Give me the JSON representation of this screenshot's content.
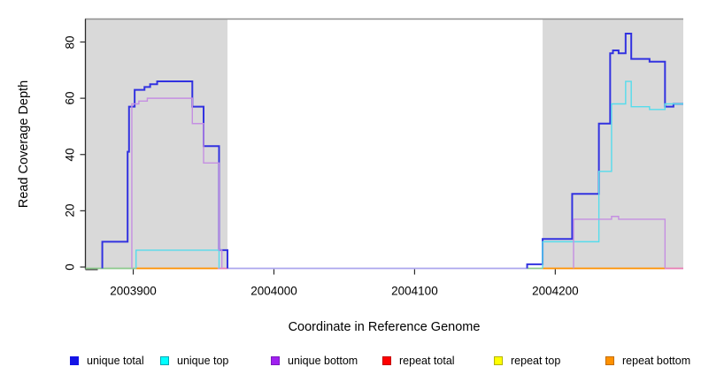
{
  "chart": {
    "y_title": "Read Coverage Depth",
    "x_title": "Coordinate in Reference Genome"
  },
  "chart_data": {
    "type": "line",
    "subtype": "step-function read coverage plot",
    "title": "",
    "xlabel": "Coordinate in Reference Genome",
    "ylabel": "Read Coverage Depth",
    "xlim": [
      2003866,
      2004291
    ],
    "ylim": [
      0,
      80
    ],
    "x_ticks": [
      2003900,
      2004000,
      2004100,
      2004200
    ],
    "y_ticks": [
      0,
      20,
      40,
      60,
      80
    ],
    "grid": false,
    "legend_position": "bottom",
    "shaded_regions": [
      {
        "from": 2003866,
        "to": 2003967,
        "color": "#d9d9d9"
      },
      {
        "from": 2004191,
        "to": 2004291,
        "color": "#d9d9d9"
      }
    ],
    "series": [
      {
        "name": "unique total",
        "color": "#3232e0",
        "width": 2,
        "steps": [
          [
            2003866,
            0
          ],
          [
            2003878,
            9
          ],
          [
            2003896,
            41
          ],
          [
            2003897,
            57
          ],
          [
            2003901,
            63
          ],
          [
            2003908,
            64
          ],
          [
            2003912,
            65
          ],
          [
            2003917,
            66
          ],
          [
            2003942,
            57
          ],
          [
            2003950,
            43
          ],
          [
            2003961,
            6
          ],
          [
            2003967,
            0
          ],
          [
            2004180,
            1
          ],
          [
            2004191,
            10
          ],
          [
            2004212,
            26
          ],
          [
            2004231,
            51
          ],
          [
            2004239,
            76
          ],
          [
            2004241,
            77
          ],
          [
            2004245,
            76
          ],
          [
            2004250,
            83
          ],
          [
            2004254,
            74
          ],
          [
            2004267,
            73
          ],
          [
            2004278,
            57
          ],
          [
            2004284,
            58
          ],
          [
            2004291,
            58
          ]
        ]
      },
      {
        "name": "unique top",
        "color": "#55dcec",
        "width": 1.4,
        "steps": [
          [
            2003866,
            0
          ],
          [
            2003902,
            6
          ],
          [
            2003961,
            0
          ],
          [
            2004191,
            9
          ],
          [
            2004231,
            34
          ],
          [
            2004240,
            58
          ],
          [
            2004250,
            66
          ],
          [
            2004254,
            57
          ],
          [
            2004267,
            56
          ],
          [
            2004278,
            58
          ],
          [
            2004291,
            58
          ]
        ]
      },
      {
        "name": "unique bottom",
        "color": "#c58fe2",
        "width": 1.4,
        "steps": [
          [
            2003866,
            0
          ],
          [
            2003899,
            58
          ],
          [
            2003904,
            59
          ],
          [
            2003910,
            60
          ],
          [
            2003942,
            51
          ],
          [
            2003950,
            37
          ],
          [
            2003961,
            6
          ],
          [
            2003963,
            0
          ],
          [
            2004213,
            17
          ],
          [
            2004240,
            18
          ],
          [
            2004245,
            17
          ],
          [
            2004278,
            0
          ],
          [
            2004291,
            0
          ]
        ]
      },
      {
        "name": "repeat total",
        "color": "#ff0000",
        "width": 1.4,
        "steps": [
          [
            2003866,
            0
          ],
          [
            2004291,
            0
          ]
        ]
      },
      {
        "name": "repeat top",
        "color": "#ffff00",
        "width": 1.4,
        "steps": [
          [
            2003866,
            0
          ],
          [
            2004291,
            0
          ]
        ]
      },
      {
        "name": "repeat bottom",
        "color": "#ff9100",
        "width": 1.4,
        "steps": [
          [
            2003866,
            0
          ],
          [
            2004291,
            0
          ]
        ]
      }
    ],
    "zero_overlap_segments": [
      {
        "from": 2003866,
        "to": 2003902,
        "color": "#8cc98c"
      },
      {
        "from": 2003902,
        "to": 2003960,
        "color": "#ff9100"
      },
      {
        "from": 2003960,
        "to": 2003967,
        "color": "#e87db4"
      },
      {
        "from": 2003967,
        "to": 2004180,
        "color": "#aca6ee"
      },
      {
        "from": 2004180,
        "to": 2004191,
        "color": "#8cc98c"
      },
      {
        "from": 2004191,
        "to": 2004278,
        "color": "#ff9100"
      },
      {
        "from": 2004278,
        "to": 2004291,
        "color": "#e87db4"
      }
    ]
  },
  "legend": {
    "items": [
      {
        "label": "unique total",
        "fill": "#1414e6",
        "border": "#1414e6"
      },
      {
        "label": "unique top",
        "fill": "#00ffff",
        "border": "#00a6b3"
      },
      {
        "label": "unique bottom",
        "fill": "#a020f0",
        "border": "#7d18bf"
      },
      {
        "label": "repeat total",
        "fill": "#ff0000",
        "border": "#c40000"
      },
      {
        "label": "repeat top",
        "fill": "#ffff00",
        "border": "#b3b300"
      },
      {
        "label": "repeat bottom",
        "fill": "#ff9100",
        "border": "#c26c00"
      }
    ]
  }
}
